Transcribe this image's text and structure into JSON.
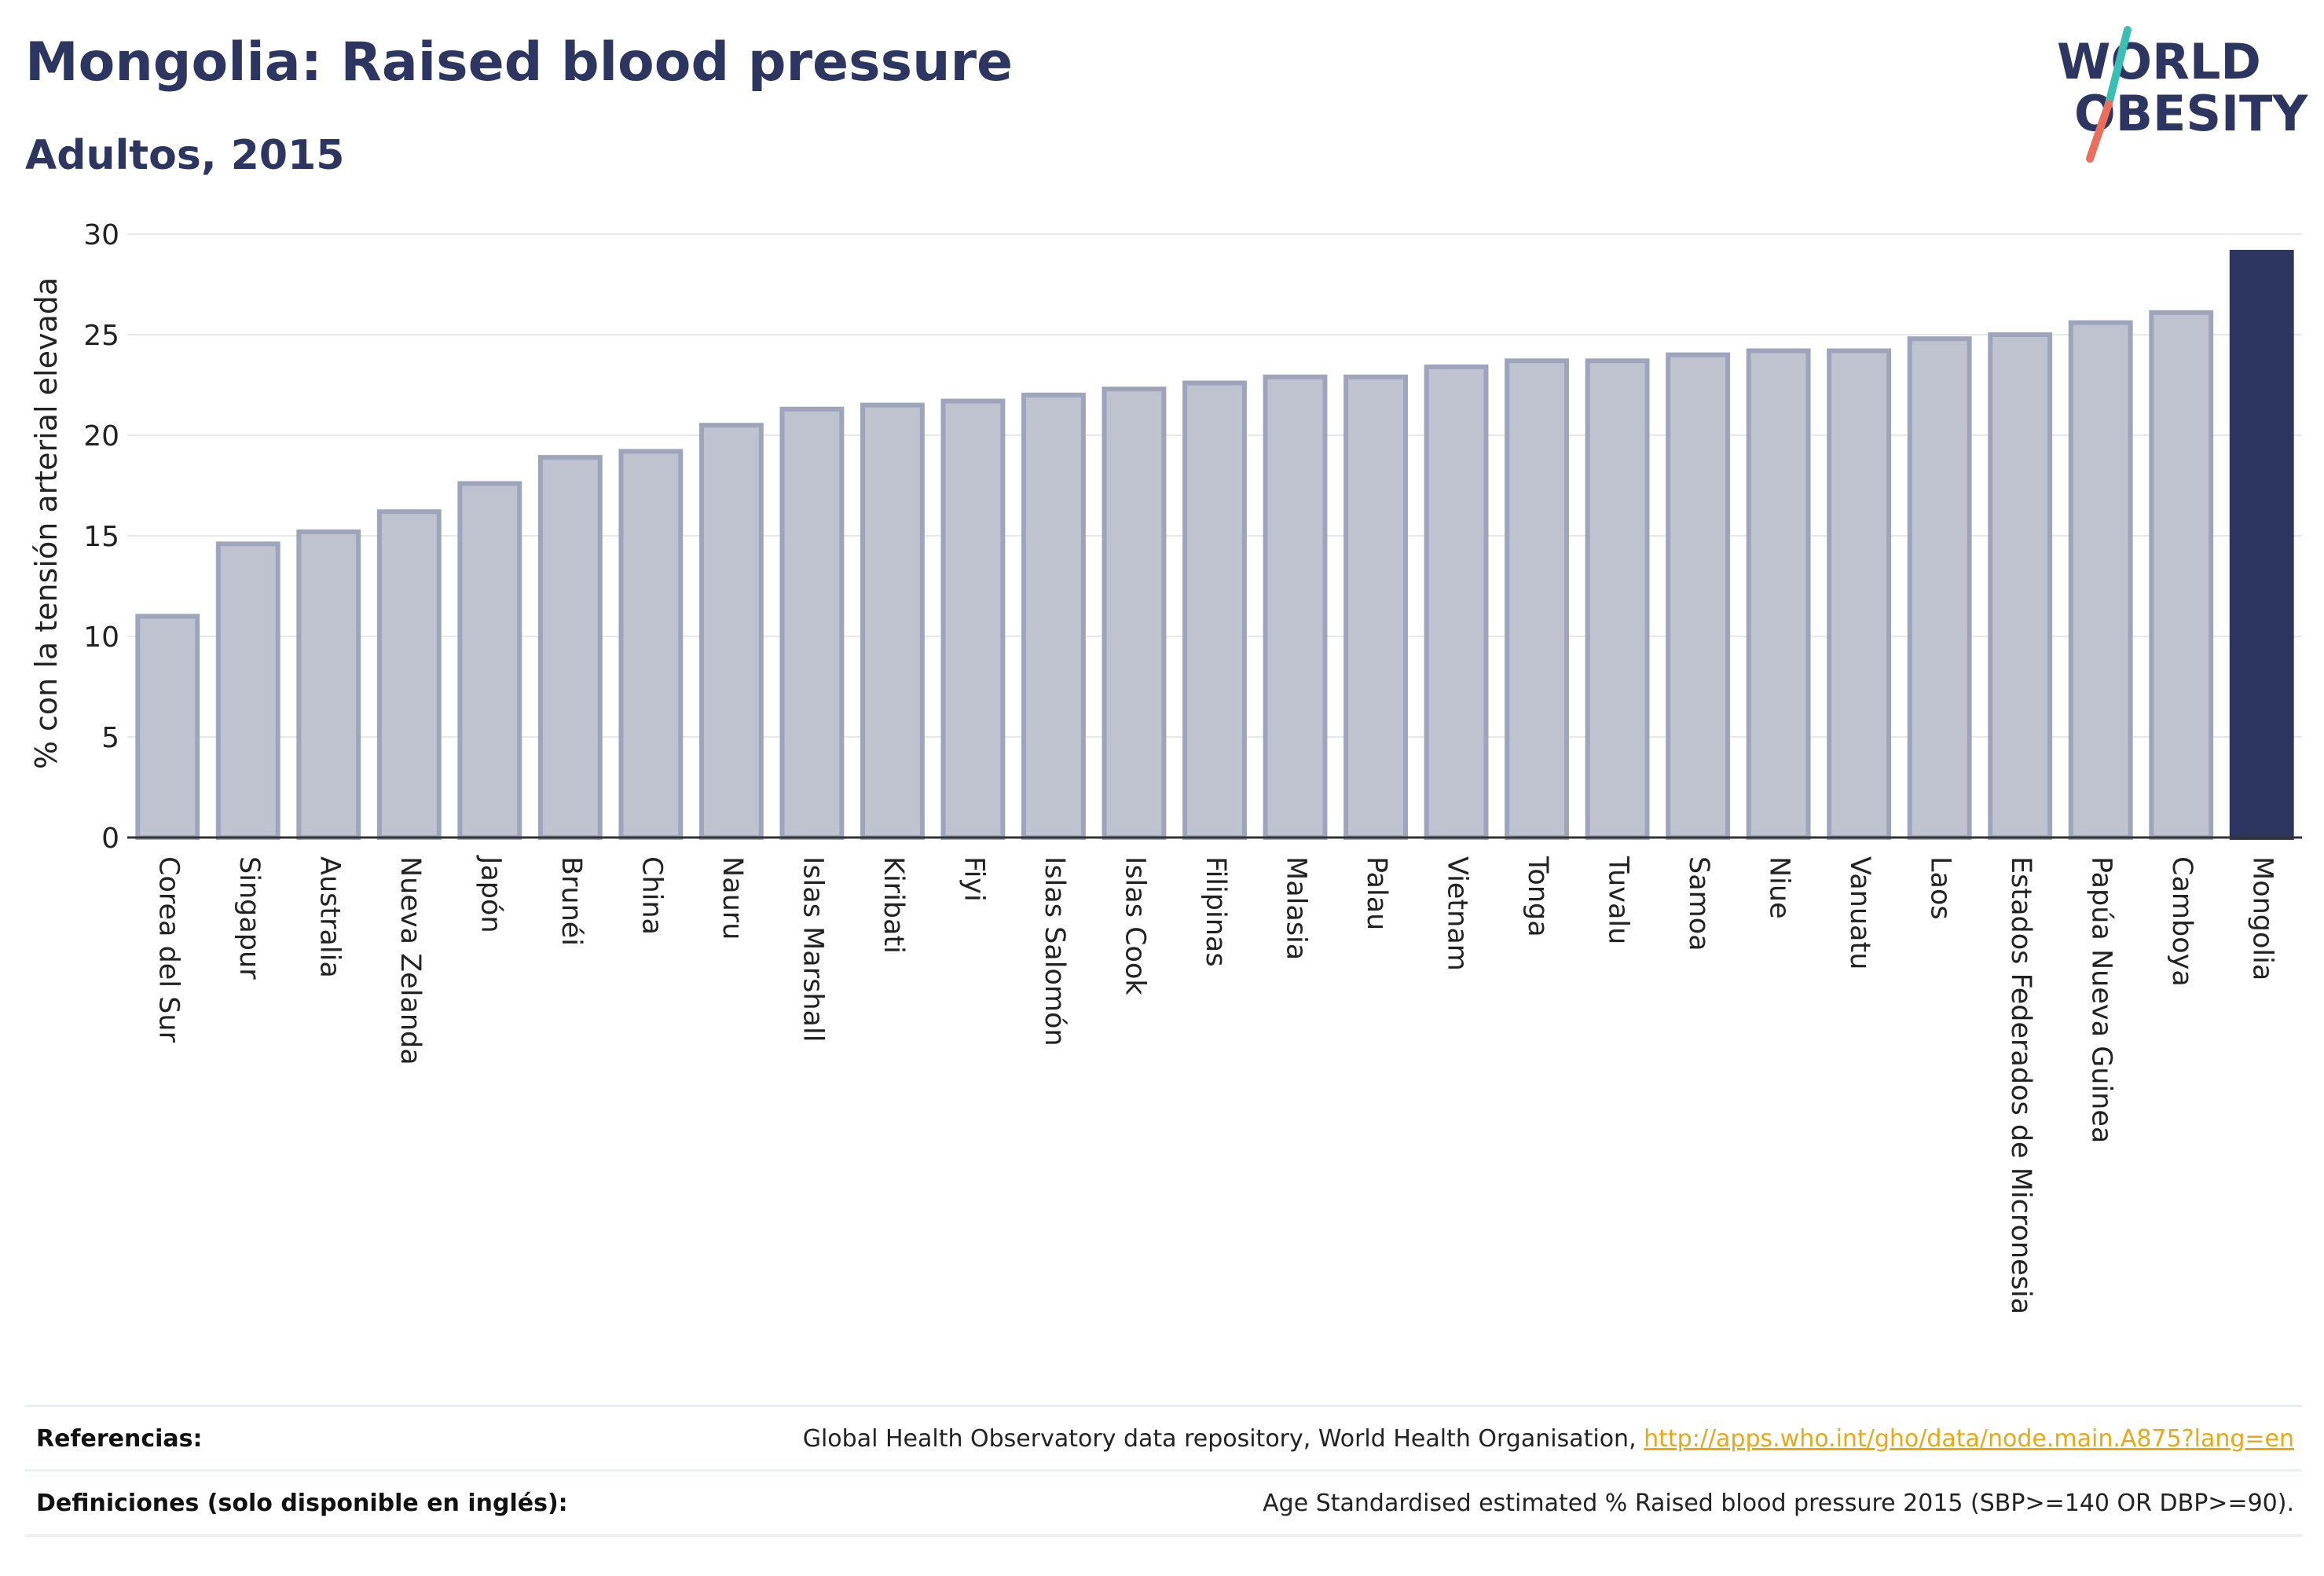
{
  "header": {
    "title": "Mongolia: Raised blood pressure",
    "subtitle": "Adultos, 2015"
  },
  "logo": {
    "line1": "WORLD",
    "line2": "OBESITY",
    "text_color": "#2c3660",
    "slash_colors": [
      "#3bbfb5",
      "#e8705d"
    ]
  },
  "colors": {
    "bar_default": "#bfc2cf",
    "bar_outline": "#9ea4bc",
    "bar_highlight": "#2c3660",
    "grid": "#e6e8ef",
    "axis": "#333333"
  },
  "chart_data": {
    "type": "bar",
    "ylabel": "% con la tensión arterial elevada",
    "xlabel": "",
    "ylim": [
      0,
      30
    ],
    "yticks": [
      0,
      5,
      10,
      15,
      20,
      25,
      30
    ],
    "grid": true,
    "highlight": "Mongolia",
    "categories": [
      "Corea del Sur",
      "Singapur",
      "Australia",
      "Nueva Zelanda",
      "Japón",
      "Brunéi",
      "China",
      "Nauru",
      "Islas Marshall",
      "Kiribati",
      "Fiyi",
      "Islas Salomón",
      "Islas Cook",
      "Filipinas",
      "Malasia",
      "Palau",
      "Vietnam",
      "Tonga",
      "Tuvalu",
      "Samoa",
      "Niue",
      "Vanuatu",
      "Laos",
      "Estados Federados de Micronesia",
      "Papúa Nueva Guinea",
      "Camboya",
      "Mongolia"
    ],
    "values": [
      11.0,
      14.6,
      15.2,
      16.2,
      17.6,
      18.9,
      19.2,
      20.5,
      21.3,
      21.5,
      21.7,
      22.0,
      22.3,
      22.6,
      22.9,
      22.9,
      23.4,
      23.7,
      23.7,
      24.0,
      24.2,
      24.2,
      24.8,
      25.0,
      25.6,
      26.1,
      29.1
    ]
  },
  "footer": {
    "references_label": "Referencias:",
    "references_text": "Global Health Observatory data repository, World Health Organisation, ",
    "references_link": "http://apps.who.int/gho/data/node.main.A875?lang=en",
    "definitions_label": "Definiciones (solo disponible en inglés):",
    "definitions_text": "Age Standardised estimated % Raised blood pressure 2015 (SBP>=140 OR DBP>=90)."
  }
}
